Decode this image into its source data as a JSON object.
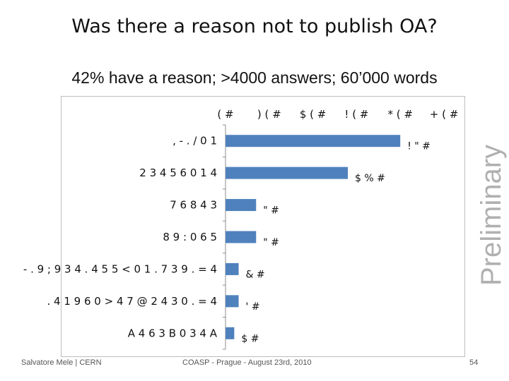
{
  "slide": {
    "title": "Was there a reason not to publish OA?",
    "subtitle": "42% have a reason; >4000 answers; 60’000 words",
    "watermark": "Preliminary",
    "footer_left": "Salvatore Mele | CERN",
    "footer_center": "COASP - Prague - August 23rd, 2010",
    "page_number": "54"
  },
  "chart_data": {
    "type": "bar",
    "orientation": "horizontal",
    "categories": [
      ", - . / 0 1",
      "2 3 4 5 6 0 1 4",
      "7 6 8 4 3",
      "8 9 : 0 6 5",
      "- . 9 ; 9 3 4 . 4 5 5 < 0 1 . 7 3 9 . = 4",
      ". 4 1 9 6 0 > 4 7 @ 2 4 3 0 . = 4",
      "A 4 6 3 B 0 3 4 A"
    ],
    "values": [
      40,
      28,
      7,
      7,
      3,
      3,
      2
    ],
    "data_labels": [
      "! \" #",
      "$ % #",
      "\" #",
      "\" #",
      "& #",
      "' #",
      "$ #"
    ],
    "x_tick_labels": [
      "( #",
      ") ( #",
      "$ ( #",
      "! ( #",
      "* ( #",
      "+ ( #"
    ],
    "xlim": [
      0,
      50
    ],
    "bar_color": "#4f81bd",
    "grid": false,
    "legend": "none"
  }
}
